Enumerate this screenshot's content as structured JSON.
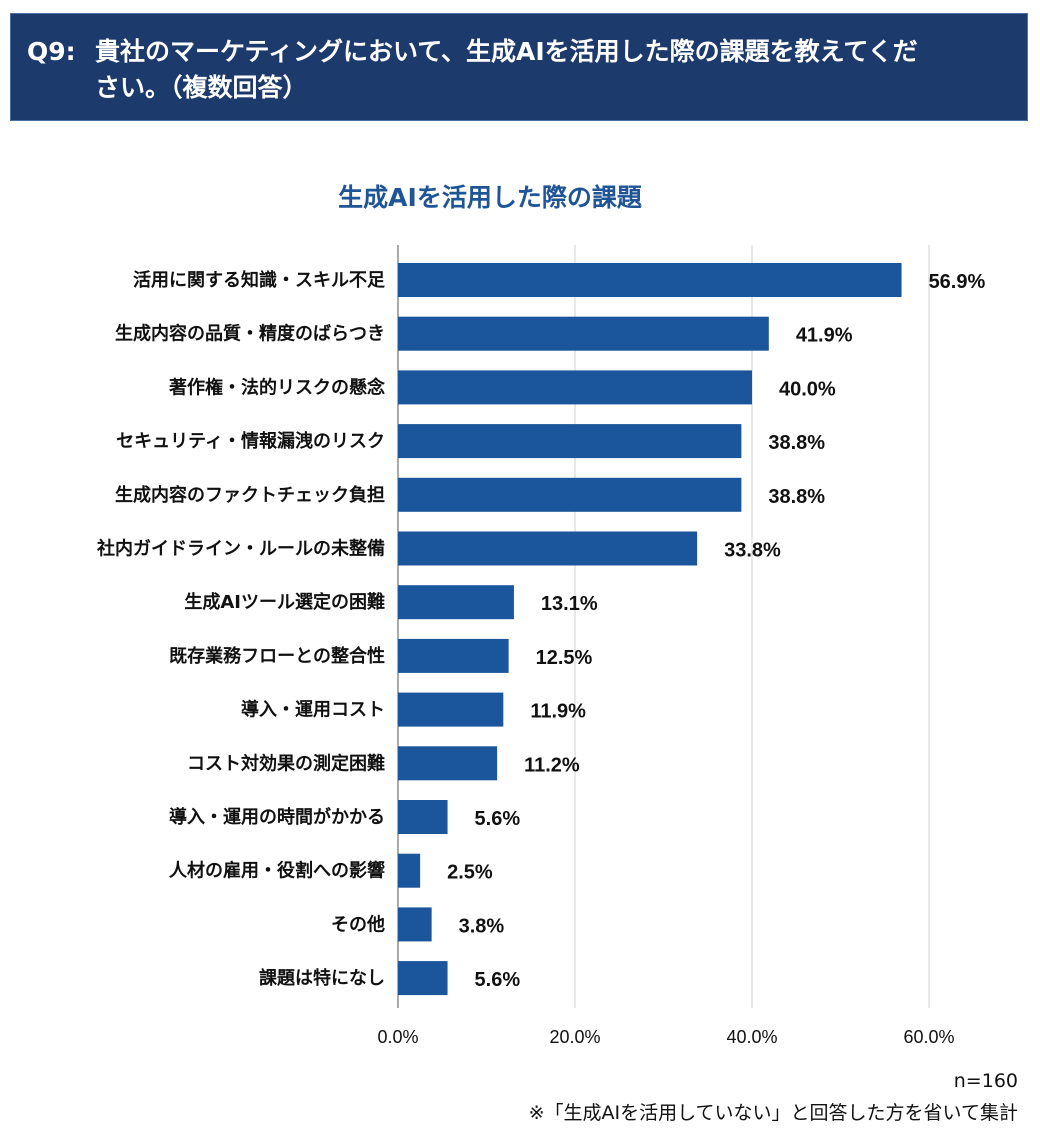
{
  "header": {
    "q_label": "Q9:",
    "line1": "貴社のマーケティングにおいて、生成AIを活用した際の課題を教えてくだ",
    "line2": "さい。（複数回答）"
  },
  "chart_data": {
    "type": "bar",
    "orientation": "horizontal",
    "title": "生成AIを活用した際の課題",
    "categories": [
      "活用に関する知識・スキル不足",
      "生成内容の品質・精度のばらつき",
      "著作権・法的リスクの懸念",
      "セキュリティ・情報漏洩のリスク",
      "生成内容のファクトチェック負担",
      "社内ガイドライン・ルールの未整備",
      "生成AIツール選定の困難",
      "既存業務フローとの整合性",
      "導入・運用コスト",
      "コスト対効果の測定困難",
      "導入・運用の時間がかかる",
      "人材の雇用・役割への影響",
      "その他",
      "課題は特になし"
    ],
    "values": [
      56.9,
      41.9,
      40.0,
      38.8,
      38.8,
      33.8,
      13.1,
      12.5,
      11.9,
      11.2,
      5.6,
      2.5,
      3.8,
      5.6
    ],
    "value_labels": [
      "56.9%",
      "41.9%",
      "40.0%",
      "38.8%",
      "38.8%",
      "33.8%",
      "13.1%",
      "12.5%",
      "11.9%",
      "11.2%",
      "5.6%",
      "2.5%",
      "3.8%",
      "5.6%"
    ],
    "xlim": [
      0,
      60
    ],
    "xticks": [
      "0.0%",
      "20.0%",
      "40.0%",
      "60.0%"
    ],
    "grid": true,
    "bar_color": "#1b559b"
  },
  "footer": {
    "n": "n=160",
    "note": "※「生成AIを活用していない」と回答した方を省いて集計"
  }
}
